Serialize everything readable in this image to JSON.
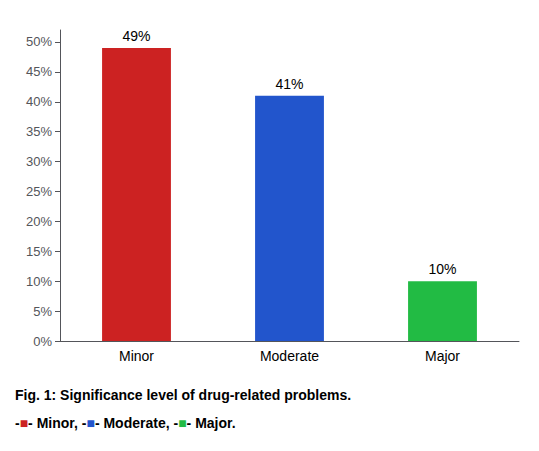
{
  "chart_data": {
    "type": "bar",
    "categories": [
      "Minor",
      "Moderate",
      "Major"
    ],
    "values": [
      49,
      41,
      10
    ],
    "value_labels": [
      "49%",
      "41%",
      "10%"
    ],
    "data_labels": true,
    "colors": [
      "#cc2222",
      "#2255cc",
      "#22bb44"
    ],
    "ylim": [
      0,
      52
    ],
    "yticks": [
      {
        "value": 0,
        "label": "0%"
      },
      {
        "value": 5,
        "label": "5%"
      },
      {
        "value": 10,
        "label": "10%"
      },
      {
        "value": 15,
        "label": "15%"
      },
      {
        "value": 20,
        "label": "20%"
      },
      {
        "value": 25,
        "label": "25%"
      },
      {
        "value": 30,
        "label": "30%"
      },
      {
        "value": 35,
        "label": "35%"
      },
      {
        "value": 40,
        "label": "40%"
      },
      {
        "value": 45,
        "label": "45%"
      },
      {
        "value": 50,
        "label": "50%"
      }
    ],
    "grid": false,
    "annotations": [
      "Fig. 1: Significance level of drug-related problems.",
      "-■- Minor, -■- Moderate, -■- Major."
    ]
  }
}
